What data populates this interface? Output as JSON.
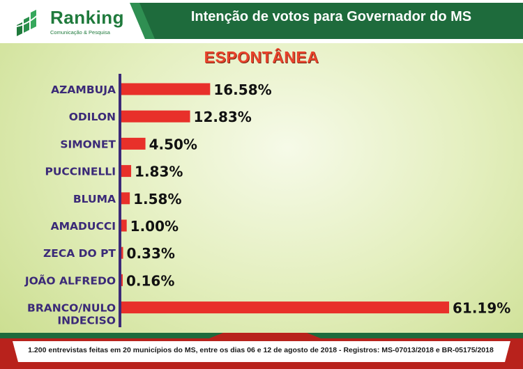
{
  "header": {
    "brand": "Ranking",
    "tagline": "Comunicação & Pesquisa",
    "title": "Intenção de votos para Governador do MS"
  },
  "footer": {
    "note": "1.200 entrevistas feitas em 20 municípios do MS, entre os dias 06 e 12 de agosto de 2018 - Registros: MS-07013/2018 e BR-05175/2018"
  },
  "colors": {
    "bar": "#e8302a",
    "label": "#3b2a78",
    "axis": "#3b2a78",
    "header_green": "#1e6b3c",
    "footer_red": "#b8221c"
  },
  "chart_data": {
    "type": "bar",
    "orientation": "horizontal",
    "title": "ESPONTÂNEA",
    "categories": [
      "AZAMBUJA",
      "ODILON",
      "SIMONET",
      "PUCCINELLI",
      "BLUMA",
      "AMADUCCI",
      "ZECA DO PT",
      "JOÃO ALFREDO",
      "BRANCO/NULO INDECISO"
    ],
    "values": [
      16.58,
      12.83,
      4.5,
      1.83,
      1.58,
      1.0,
      0.33,
      0.16,
      61.19
    ],
    "value_labels": [
      "16.58%",
      "12.83%",
      "4.50%",
      "1.83%",
      "1.58%",
      "1.00%",
      "0.33%",
      "0.16%",
      "61.19%"
    ],
    "unit": "%",
    "xlim": [
      0,
      61.19
    ]
  }
}
